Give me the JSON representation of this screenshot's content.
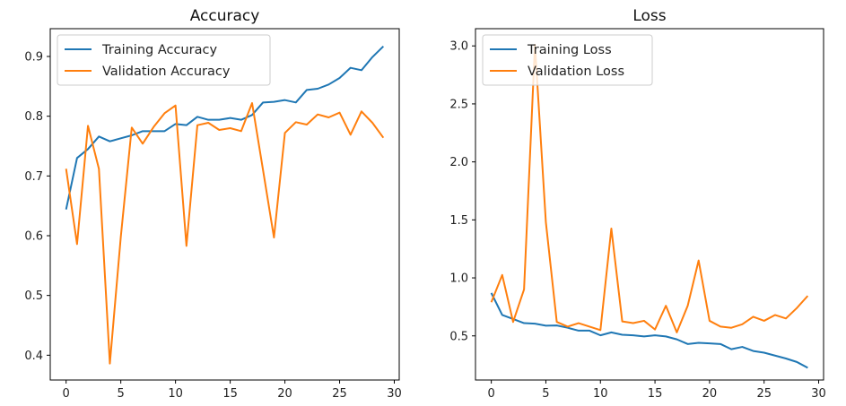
{
  "chart_data": [
    {
      "type": "line",
      "title": "Accuracy",
      "xlabel": "",
      "ylabel": "",
      "xlim": [
        -1.45,
        30.45
      ],
      "ylim": [
        0.3585,
        0.9465
      ],
      "xticks": [
        0,
        5,
        10,
        15,
        20,
        25,
        30
      ],
      "yticks": [
        0.4,
        0.5,
        0.6,
        0.7,
        0.8,
        0.9
      ],
      "ytick_labels": [
        "0.4",
        "0.5",
        "0.6",
        "0.7",
        "0.8",
        "0.9"
      ],
      "grid": false,
      "legend_position": "top-left",
      "x": [
        0,
        1,
        2,
        3,
        4,
        5,
        6,
        7,
        8,
        9,
        10,
        11,
        12,
        13,
        14,
        15,
        16,
        17,
        18,
        19,
        20,
        21,
        22,
        23,
        24,
        25,
        26,
        27,
        28,
        29
      ],
      "series": [
        {
          "name": "Training Accuracy",
          "color": "#1f77b4",
          "values": [
            0.644,
            0.73,
            0.745,
            0.766,
            0.758,
            0.763,
            0.768,
            0.775,
            0.775,
            0.775,
            0.787,
            0.785,
            0.799,
            0.794,
            0.794,
            0.797,
            0.794,
            0.802,
            0.823,
            0.824,
            0.827,
            0.823,
            0.844,
            0.846,
            0.853,
            0.864,
            0.881,
            0.877,
            0.899,
            0.917
          ]
        },
        {
          "name": "Validation Accuracy",
          "color": "#ff7f0e",
          "values": [
            0.712,
            0.586,
            0.784,
            0.712,
            0.386,
            0.598,
            0.781,
            0.754,
            0.782,
            0.805,
            0.818,
            0.583,
            0.785,
            0.789,
            0.777,
            0.78,
            0.775,
            0.822,
            0.71,
            0.597,
            0.772,
            0.79,
            0.786,
            0.803,
            0.798,
            0.806,
            0.769,
            0.808,
            0.789,
            0.764
          ]
        }
      ]
    },
    {
      "type": "line",
      "title": "Loss",
      "xlabel": "",
      "ylabel": "",
      "xlim": [
        -1.45,
        30.45
      ],
      "ylim": [
        0.1195,
        3.1485
      ],
      "xticks": [
        0,
        5,
        10,
        15,
        20,
        25,
        30
      ],
      "yticks": [
        0.5,
        1.0,
        1.5,
        2.0,
        2.5,
        3.0
      ],
      "ytick_labels": [
        "0.5",
        "1.0",
        "1.5",
        "2.0",
        "2.5",
        "3.0"
      ],
      "grid": false,
      "legend_position": "top-left",
      "x": [
        0,
        1,
        2,
        3,
        4,
        5,
        6,
        7,
        8,
        9,
        10,
        11,
        12,
        13,
        14,
        15,
        16,
        17,
        18,
        19,
        20,
        21,
        22,
        23,
        24,
        25,
        26,
        27,
        28,
        29
      ],
      "series": [
        {
          "name": "Training Loss",
          "color": "#1f77b4",
          "values": [
            0.87,
            0.68,
            0.645,
            0.61,
            0.605,
            0.588,
            0.59,
            0.57,
            0.545,
            0.545,
            0.505,
            0.53,
            0.51,
            0.505,
            0.495,
            0.505,
            0.495,
            0.47,
            0.43,
            0.44,
            0.435,
            0.43,
            0.385,
            0.405,
            0.37,
            0.355,
            0.33,
            0.305,
            0.275,
            0.225
          ]
        },
        {
          "name": "Validation Loss",
          "color": "#ff7f0e",
          "values": [
            0.79,
            1.025,
            0.62,
            0.9,
            3.01,
            1.48,
            0.62,
            0.58,
            0.61,
            0.58,
            0.55,
            1.425,
            0.625,
            0.61,
            0.63,
            0.555,
            0.76,
            0.53,
            0.76,
            1.15,
            0.63,
            0.58,
            0.57,
            0.6,
            0.665,
            0.63,
            0.68,
            0.65,
            0.74,
            0.845
          ]
        }
      ]
    }
  ]
}
